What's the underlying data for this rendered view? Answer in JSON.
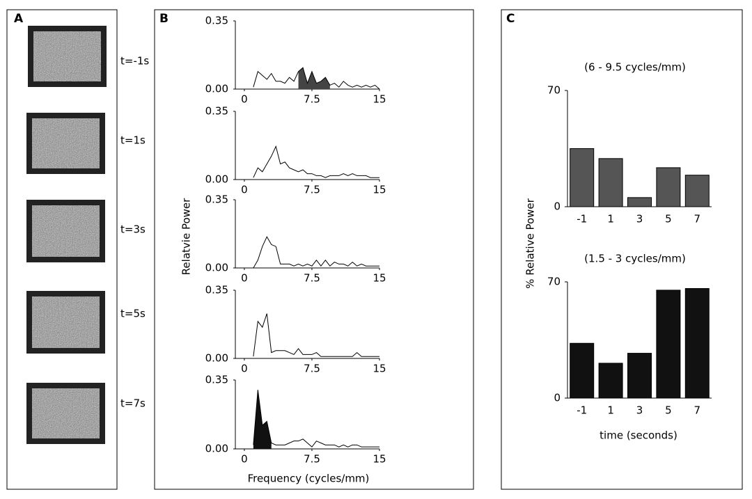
{
  "panels": {
    "a": {
      "label": "A",
      "images": [
        {
          "caption": "t=-1s"
        },
        {
          "caption": "t=1s"
        },
        {
          "caption": "t=3s"
        },
        {
          "caption": "t=5s"
        },
        {
          "caption": "t=7s"
        }
      ]
    },
    "b": {
      "label": "B",
      "y_label": "Relatvie Power",
      "x_label": "Frequency (cycles/mm)"
    },
    "c": {
      "label": "C",
      "y_label": "% Relative Power",
      "x_label": "time (seconds)"
    }
  },
  "chart_data": [
    {
      "type": "line",
      "color": "#000000",
      "highlight_color": "#444444",
      "highlight_range": [
        6,
        9.5
      ],
      "x": [
        1,
        1.5,
        2,
        2.5,
        3,
        3.5,
        4,
        4.5,
        5,
        5.5,
        6,
        6.5,
        7,
        7.5,
        8,
        8.5,
        9,
        9.5,
        10,
        10.5,
        11,
        11.5,
        12,
        12.5,
        13,
        13.5,
        14,
        14.5,
        15
      ],
      "values": [
        0.01,
        0.09,
        0.07,
        0.05,
        0.08,
        0.04,
        0.04,
        0.03,
        0.06,
        0.04,
        0.09,
        0.11,
        0.03,
        0.09,
        0.03,
        0.04,
        0.06,
        0.02,
        0.03,
        0.01,
        0.04,
        0.02,
        0.01,
        0.02,
        0.01,
        0.02,
        0.01,
        0.02,
        0.0
      ],
      "xlim": [
        -1,
        15
      ],
      "ylim": [
        0,
        0.35
      ],
      "xticks": [
        0,
        7.5,
        15
      ],
      "yticks": [
        {
          "value": 0,
          "label": "0.00"
        },
        0.35
      ]
    },
    {
      "type": "line",
      "color": "#000000",
      "x": [
        1,
        1.5,
        2,
        2.5,
        3,
        3.5,
        4,
        4.5,
        5,
        5.5,
        6,
        6.5,
        7,
        7.5,
        8,
        8.5,
        9,
        9.5,
        10,
        10.5,
        11,
        11.5,
        12,
        12.5,
        13,
        13.5,
        14,
        14.5,
        15
      ],
      "values": [
        0.01,
        0.06,
        0.04,
        0.08,
        0.12,
        0.17,
        0.08,
        0.09,
        0.06,
        0.05,
        0.04,
        0.05,
        0.03,
        0.03,
        0.02,
        0.02,
        0.01,
        0.02,
        0.02,
        0.02,
        0.03,
        0.02,
        0.03,
        0.02,
        0.02,
        0.02,
        0.01,
        0.01,
        0.01
      ],
      "xlim": [
        -1,
        15
      ],
      "ylim": [
        0,
        0.35
      ],
      "xticks": [
        0,
        7.5,
        15
      ],
      "yticks": [
        {
          "value": 0,
          "label": "0.00"
        },
        0.35
      ]
    },
    {
      "type": "line",
      "color": "#000000",
      "x": [
        1,
        1.5,
        2,
        2.5,
        3,
        3.5,
        4,
        4.5,
        5,
        5.5,
        6,
        6.5,
        7,
        7.5,
        8,
        8.5,
        9,
        9.5,
        10,
        10.5,
        11,
        11.5,
        12,
        12.5,
        13,
        13.5,
        14,
        14.5,
        15
      ],
      "values": [
        0.0,
        0.04,
        0.11,
        0.16,
        0.12,
        0.11,
        0.02,
        0.02,
        0.02,
        0.01,
        0.02,
        0.01,
        0.02,
        0.01,
        0.04,
        0.01,
        0.04,
        0.01,
        0.03,
        0.02,
        0.02,
        0.01,
        0.03,
        0.01,
        0.02,
        0.01,
        0.01,
        0.01,
        0.01
      ],
      "xlim": [
        -1,
        15
      ],
      "ylim": [
        0,
        0.35
      ],
      "xticks": [
        0,
        7.5,
        15
      ],
      "yticks": [
        {
          "value": 0,
          "label": "0.00"
        },
        0.35
      ]
    },
    {
      "type": "line",
      "color": "#000000",
      "x": [
        1,
        1.5,
        2,
        2.5,
        3,
        3.5,
        4,
        4.5,
        5,
        5.5,
        6,
        6.5,
        7,
        7.5,
        8,
        8.5,
        9,
        9.5,
        10,
        10.5,
        11,
        11.5,
        12,
        12.5,
        13,
        13.5,
        14,
        14.5,
        15
      ],
      "values": [
        0.01,
        0.19,
        0.16,
        0.23,
        0.03,
        0.04,
        0.04,
        0.04,
        0.03,
        0.02,
        0.05,
        0.02,
        0.02,
        0.02,
        0.03,
        0.01,
        0.01,
        0.01,
        0.01,
        0.01,
        0.01,
        0.01,
        0.01,
        0.03,
        0.01,
        0.01,
        0.01,
        0.01,
        0.01
      ],
      "xlim": [
        -1,
        15
      ],
      "ylim": [
        0,
        0.35
      ],
      "xticks": [
        0,
        7.5,
        15
      ],
      "yticks": [
        {
          "value": 0,
          "label": "0.00"
        },
        0.35
      ]
    },
    {
      "type": "line",
      "color": "#000000",
      "highlight_color": "#111111",
      "highlight_range": [
        1,
        3
      ],
      "x": [
        1,
        1.5,
        2,
        2.5,
        3,
        3.5,
        4,
        4.5,
        5,
        5.5,
        6,
        6.5,
        7,
        7.5,
        8,
        8.5,
        9,
        9.5,
        10,
        10.5,
        11,
        11.5,
        12,
        12.5,
        13,
        13.5,
        14,
        14.5,
        15
      ],
      "values": [
        0.02,
        0.3,
        0.12,
        0.14,
        0.03,
        0.02,
        0.02,
        0.02,
        0.03,
        0.04,
        0.04,
        0.05,
        0.03,
        0.01,
        0.04,
        0.03,
        0.02,
        0.02,
        0.02,
        0.01,
        0.02,
        0.01,
        0.02,
        0.02,
        0.01,
        0.01,
        0.01,
        0.01,
        0.01
      ],
      "xlim": [
        -1,
        15
      ],
      "ylim": [
        0,
        0.35
      ],
      "xticks": [
        0,
        7.5,
        15
      ],
      "yticks": [
        {
          "value": 0,
          "label": "0.00"
        },
        0.35
      ]
    },
    {
      "type": "bar",
      "title": "(6 - 9.5 cycles/mm)",
      "color": "#555555",
      "categories": [
        "-1",
        "1",
        "3",
        "5",
        "7"
      ],
      "values": [
        35,
        29,
        5.5,
        23.5,
        19
      ],
      "ylim": [
        0,
        70
      ],
      "yticks": [
        0,
        70
      ]
    },
    {
      "type": "bar",
      "title": "(1.5 - 3 cycles/mm)",
      "color": "#111111",
      "categories": [
        "-1",
        "1",
        "3",
        "5",
        "7"
      ],
      "values": [
        33,
        21,
        27,
        65,
        66
      ],
      "ylim": [
        0,
        70
      ],
      "yticks": [
        0,
        70
      ]
    }
  ]
}
